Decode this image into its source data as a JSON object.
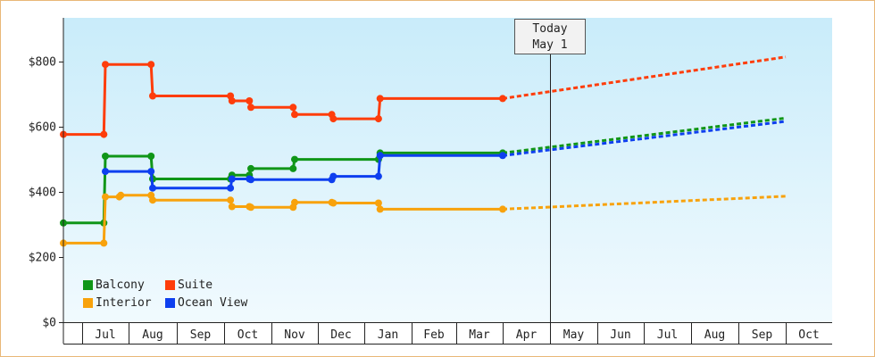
{
  "chart_data": {
    "type": "line",
    "y_ticks": [
      "$0",
      "$200",
      "$400",
      "$600",
      "$800"
    ],
    "y_range": [
      0,
      935
    ],
    "x_months": [
      "Jul",
      "Aug",
      "Sep",
      "Oct",
      "Nov",
      "Dec",
      "Jan",
      "Feb",
      "Mar",
      "Apr",
      "May",
      "Jun",
      "Jul",
      "Aug",
      "Sep",
      "Oct"
    ],
    "today": {
      "line1": "Today",
      "line2": "May 1"
    },
    "grid": false,
    "legend_position": "bottom-left",
    "series": [
      {
        "name": "Balcony",
        "color": "#109618",
        "actual": [
          [
            "Jun 1",
            305
          ],
          [
            "Aug 15",
            305
          ],
          [
            "Aug 16",
            510
          ],
          [
            "Sep 15",
            510
          ],
          [
            "Sep 16",
            440
          ],
          [
            "Nov 5",
            440
          ],
          [
            "Nov 6",
            452
          ],
          [
            "Nov 17",
            452
          ],
          [
            "Nov 18",
            472
          ],
          [
            "Dec 15",
            472
          ],
          [
            "Dec 16",
            500
          ],
          [
            "Feb 10",
            500
          ],
          [
            "Feb 11",
            520
          ],
          [
            "May 1",
            520
          ]
        ],
        "projected": [
          [
            "May 1",
            520
          ],
          [
            "Oct 31",
            627
          ]
        ]
      },
      {
        "name": "Suite",
        "color": "#fe3d0b",
        "actual": [
          [
            "Jun 1",
            577
          ],
          [
            "Aug 15",
            577
          ],
          [
            "Aug 16",
            792
          ],
          [
            "Sep 15",
            792
          ],
          [
            "Sep 16",
            695
          ],
          [
            "Nov 5",
            695
          ],
          [
            "Nov 6",
            680
          ],
          [
            "Nov 17",
            680
          ],
          [
            "Nov 18",
            660
          ],
          [
            "Dec 15",
            660
          ],
          [
            "Dec 16",
            638
          ],
          [
            "Jan 10",
            638
          ],
          [
            "Jan 11",
            625
          ],
          [
            "Feb 10",
            625
          ],
          [
            "Feb 11",
            687
          ],
          [
            "May 1",
            687
          ]
        ],
        "projected": [
          [
            "May 1",
            687
          ],
          [
            "Oct 31",
            815
          ]
        ]
      },
      {
        "name": "Interior",
        "color": "#f8a20c",
        "actual": [
          [
            "Jun 1",
            243
          ],
          [
            "Aug 15",
            243
          ],
          [
            "Aug 16",
            385
          ],
          [
            "Aug 25",
            385
          ],
          [
            "Aug 26",
            390
          ],
          [
            "Sep 15",
            390
          ],
          [
            "Sep 16",
            375
          ],
          [
            "Nov 5",
            375
          ],
          [
            "Nov 6",
            355
          ],
          [
            "Nov 17",
            355
          ],
          [
            "Nov 18",
            353
          ],
          [
            "Dec 15",
            353
          ],
          [
            "Dec 16",
            368
          ],
          [
            "Jan 10",
            368
          ],
          [
            "Jan 11",
            366
          ],
          [
            "Feb 10",
            366
          ],
          [
            "Feb 11",
            347
          ],
          [
            "May 1",
            347
          ]
        ],
        "projected": [
          [
            "May 1",
            347
          ],
          [
            "Oct 31",
            387
          ]
        ]
      },
      {
        "name": "Ocean View",
        "color": "#0e3fef",
        "actual": [
          [
            "Aug 16",
            463
          ],
          [
            "Sep 15",
            463
          ],
          [
            "Sep 16",
            412
          ],
          [
            "Nov 5",
            412
          ],
          [
            "Nov 6",
            440
          ],
          [
            "Nov 17",
            440
          ],
          [
            "Nov 18",
            438
          ],
          [
            "Jan 10",
            438
          ],
          [
            "Jan 11",
            448
          ],
          [
            "Feb 10",
            448
          ],
          [
            "Feb 11",
            512
          ],
          [
            "May 1",
            512
          ]
        ],
        "projected": [
          [
            "May 1",
            512
          ],
          [
            "Oct 31",
            617
          ]
        ]
      }
    ]
  }
}
